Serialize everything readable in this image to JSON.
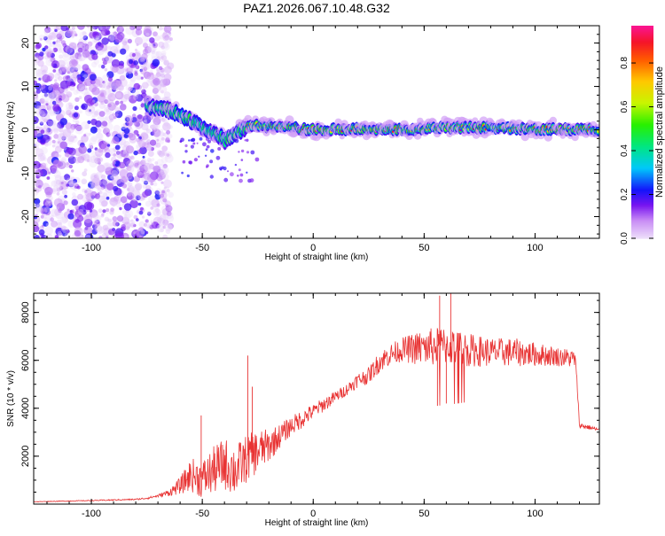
{
  "title": "PAZ1.2026.067.10.48.G32",
  "chart_data": [
    {
      "type": "heatmap",
      "name": "spectrogram",
      "xlabel": "Height of straight line (km)",
      "ylabel": "Frequency (Hz)",
      "xlim": [
        -126,
        129
      ],
      "ylim": [
        -25,
        24
      ],
      "xticks": [
        -100,
        -50,
        0,
        50,
        100
      ],
      "yticks": [
        -20,
        -10,
        0,
        10,
        20
      ],
      "xtick_labels": [
        "-100",
        "-50",
        "0",
        "50",
        "100"
      ],
      "ytick_labels": [
        "-20",
        "-10",
        "0",
        "10",
        "20"
      ],
      "noise_region_x": [
        -126,
        -70
      ],
      "ridge": {
        "x": [
          -75,
          -70,
          -65,
          -60,
          -55,
          -50,
          -45,
          -42,
          -40,
          -38,
          -35,
          -32,
          -30,
          -25,
          -20,
          -10,
          0,
          20,
          40,
          60,
          80,
          100,
          129
        ],
        "freq": [
          5.5,
          5,
          4.5,
          3.5,
          2,
          0.5,
          -0.5,
          -1.5,
          -2.5,
          -2,
          -1,
          0,
          0.8,
          1,
          0.8,
          0.5,
          0,
          0.2,
          0,
          0.5,
          0.5,
          0.2,
          0
        ]
      },
      "colorbar": {
        "label": "Normalized spectral amplitude",
        "ticks": [
          0.0,
          0.2,
          0.4,
          0.6,
          0.8
        ],
        "tick_labels": [
          "0.0",
          "0.2",
          "0.4",
          "0.6",
          "0.8"
        ],
        "range": [
          0,
          0.97
        ]
      }
    },
    {
      "type": "line",
      "name": "snr",
      "xlabel": "Height of straight line (km)",
      "ylabel": "SNR (10 * v/v)",
      "xlim": [
        -126,
        129
      ],
      "ylim": [
        0,
        8800
      ],
      "xticks": [
        -100,
        -50,
        0,
        50,
        100
      ],
      "yticks": [
        2000,
        4000,
        6000,
        8000
      ],
      "xtick_labels": [
        "-100",
        "-50",
        "0",
        "50",
        "100"
      ],
      "ytick_labels": [
        "2000",
        "4000",
        "6000",
        "8000"
      ],
      "color": "#e83333",
      "series": [
        {
          "name": "SNR",
          "x": [
            -126,
            -100,
            -80,
            -75,
            -70,
            -65,
            -60,
            -55,
            -50,
            -45,
            -40,
            -35,
            -30,
            -25,
            -20,
            -15,
            -10,
            -5,
            0,
            5,
            10,
            15,
            20,
            25,
            30,
            35,
            40,
            50,
            60,
            70,
            80,
            90,
            100,
            110,
            118,
            119,
            120,
            125,
            129
          ],
          "y": [
            100,
            150,
            200,
            250,
            350,
            500,
            800,
            1300,
            1100,
            1500,
            1800,
            1500,
            2000,
            2300,
            2500,
            2900,
            3300,
            3600,
            3900,
            4200,
            4500,
            4800,
            5200,
            5400,
            6000,
            6300,
            6500,
            6600,
            6700,
            6500,
            6400,
            6400,
            6300,
            6200,
            6100,
            5000,
            3300,
            3200,
            3100
          ],
          "noise": [
            10,
            20,
            30,
            40,
            60,
            150,
            350,
            700,
            800,
            1000,
            1100,
            1100,
            1000,
            900,
            700,
            500,
            400,
            400,
            300,
            300,
            250,
            250,
            300,
            350,
            450,
            450,
            500,
            800,
            800,
            700,
            600,
            600,
            500,
            400,
            400,
            200,
            120,
            100,
            100
          ]
        }
      ],
      "spikes": [
        {
          "x": -50.5,
          "y": 3700
        },
        {
          "x": -29.5,
          "y": 6200
        },
        {
          "x": -27.5,
          "y": 4900
        },
        {
          "x": 57,
          "y": 8700
        },
        {
          "x": 62,
          "y": 8800
        },
        {
          "x": 56,
          "y": 4100
        },
        {
          "x": 60,
          "y": 4200
        }
      ]
    }
  ]
}
